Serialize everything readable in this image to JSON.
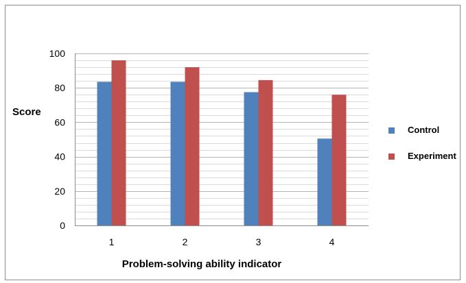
{
  "chart_data": {
    "type": "bar",
    "categories": [
      "1",
      "2",
      "3",
      "4"
    ],
    "series": [
      {
        "name": "Control",
        "values": [
          83.5,
          83.5,
          77.5,
          50.5
        ],
        "color": "#4f81bd"
      },
      {
        "name": "Experiment",
        "values": [
          96,
          92,
          84.5,
          76
        ],
        "color": "#c0504d"
      }
    ],
    "xlabel": "Problem-solving ability indicator",
    "ylabel": "Score",
    "ylim": [
      0,
      100
    ],
    "yticks": [
      0,
      20,
      40,
      60,
      80,
      100
    ],
    "grid": true,
    "minor_grid_step": 4,
    "legend_position": "right"
  }
}
